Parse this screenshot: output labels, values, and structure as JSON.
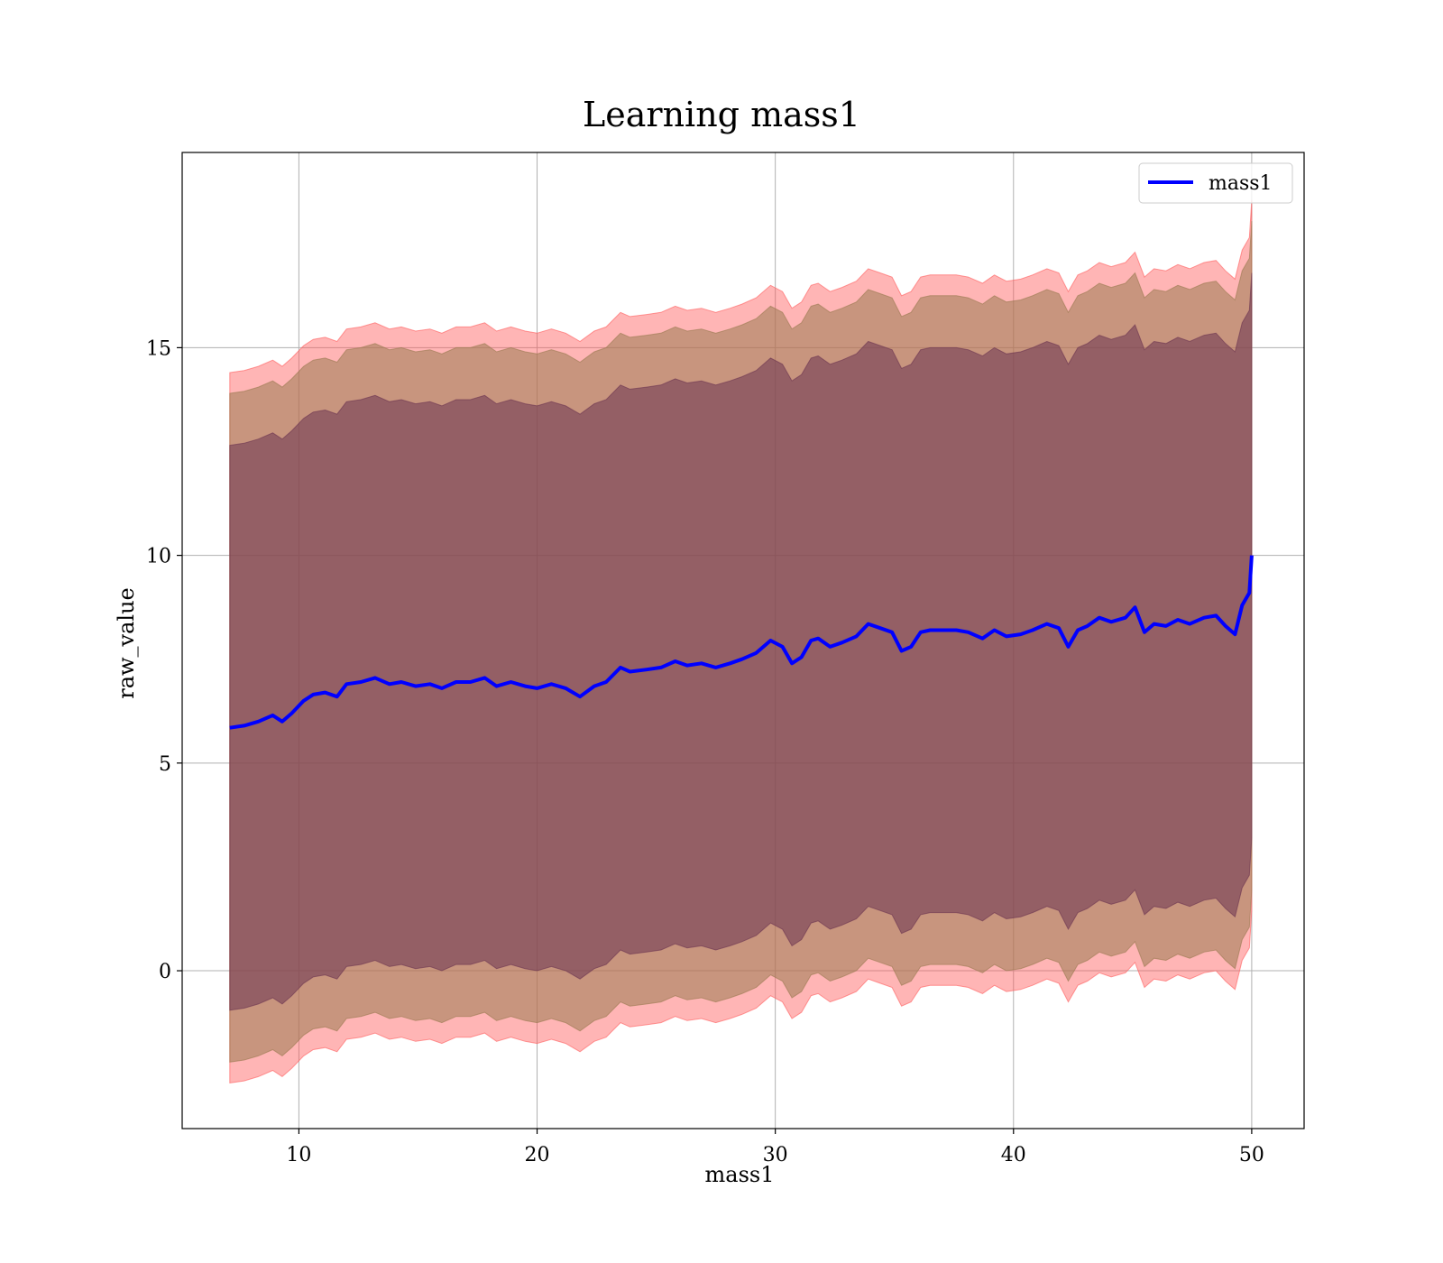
{
  "chart_data": {
    "type": "line",
    "title": "Learning mass1",
    "xlabel": "mass1",
    "ylabel": "raw_value",
    "xlim": [
      5.1,
      52.2
    ],
    "ylim": [
      -3.8,
      19.7
    ],
    "xticks": [
      10,
      20,
      30,
      40,
      50
    ],
    "yticks": [
      0,
      5,
      10,
      15
    ],
    "grid": true,
    "legend_position": "top-right",
    "series": [
      {
        "name": "mass1",
        "color": "#0000ff",
        "x": [
          7.1,
          7.7,
          8.3,
          8.9,
          9.3,
          9.7,
          10.2,
          10.6,
          11.1,
          11.6,
          12.0,
          12.6,
          13.2,
          13.8,
          14.3,
          14.9,
          15.5,
          16.0,
          16.6,
          17.2,
          17.8,
          18.3,
          18.9,
          19.5,
          20.0,
          20.6,
          21.2,
          21.8,
          22.4,
          22.9,
          23.5,
          23.9,
          24.6,
          25.2,
          25.8,
          26.3,
          26.9,
          27.5,
          28.1,
          28.6,
          29.2,
          29.8,
          30.3,
          30.7,
          31.1,
          31.5,
          31.8,
          32.3,
          32.8,
          33.4,
          33.9,
          34.4,
          34.9,
          35.3,
          35.7,
          36.1,
          36.5,
          37.0,
          37.6,
          38.1,
          38.7,
          39.2,
          39.7,
          40.3,
          40.8,
          41.4,
          41.9,
          42.3,
          42.7,
          43.1,
          43.6,
          44.1,
          44.7,
          45.1,
          45.5,
          45.9,
          46.4,
          46.9,
          47.4,
          48.0,
          48.5,
          48.9,
          49.3,
          49.6,
          49.9,
          50.0
        ],
        "y": [
          5.85,
          5.9,
          6.0,
          6.15,
          6.0,
          6.2,
          6.5,
          6.65,
          6.7,
          6.6,
          6.9,
          6.95,
          7.05,
          6.9,
          6.95,
          6.85,
          6.9,
          6.8,
          6.95,
          6.95,
          7.05,
          6.85,
          6.95,
          6.85,
          6.8,
          6.9,
          6.8,
          6.6,
          6.85,
          6.95,
          7.3,
          7.2,
          7.25,
          7.3,
          7.45,
          7.35,
          7.4,
          7.3,
          7.4,
          7.5,
          7.65,
          7.95,
          7.8,
          7.4,
          7.55,
          7.95,
          8.0,
          7.8,
          7.9,
          8.05,
          8.35,
          8.25,
          8.15,
          7.7,
          7.8,
          8.15,
          8.2,
          8.2,
          8.2,
          8.15,
          8.0,
          8.2,
          8.05,
          8.1,
          8.2,
          8.35,
          8.25,
          7.8,
          8.2,
          8.3,
          8.5,
          8.4,
          8.5,
          8.75,
          8.15,
          8.35,
          8.3,
          8.45,
          8.35,
          8.5,
          8.55,
          8.3,
          8.1,
          8.8,
          9.1,
          10.0
        ]
      }
    ],
    "bands": [
      {
        "offset": 8.55,
        "color": "#ff5a5a",
        "opacity": 0.45
      },
      {
        "offset": 8.05,
        "color": "#9a7a50",
        "opacity": 0.55
      },
      {
        "offset": 6.8,
        "color": "#6a3350",
        "opacity": 0.55
      }
    ]
  }
}
